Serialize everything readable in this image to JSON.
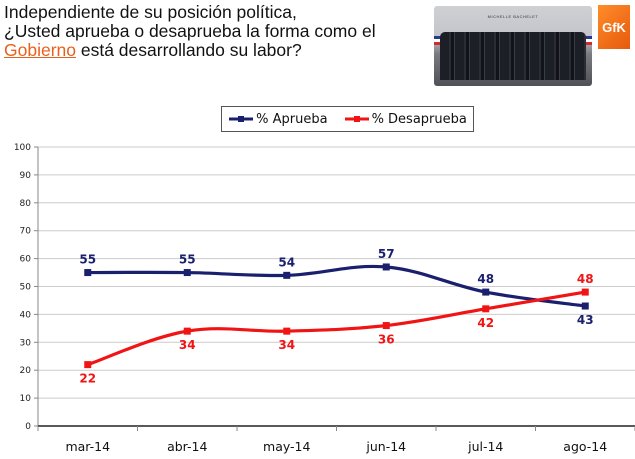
{
  "header": {
    "title_line1": "Independiente de su posición política,",
    "title_line2": "¿Usted aprueba o desaprueba la forma como el",
    "title_highlight": "Gobierno",
    "title_line3_rest": " está desarrollando su labor?",
    "photo_caption": "MICHELLE BACHELET",
    "logo_text": "GfK"
  },
  "colors": {
    "aprueba": "#1a1f6e",
    "desaprueba": "#f01414",
    "highlight": "#e8611c",
    "grid": "#cccccc"
  },
  "chart_data": {
    "type": "line",
    "title": "",
    "xlabel": "",
    "ylabel": "",
    "categories": [
      "mar-14",
      "abr-14",
      "may-14",
      "jun-14",
      "jul-14",
      "ago-14"
    ],
    "series": [
      {
        "name": "% Aprueba",
        "values": [
          55,
          55,
          54,
          57,
          48,
          43
        ],
        "color": "#1a1f6e",
        "label_pos": [
          "above",
          "above",
          "above",
          "above",
          "above",
          "below"
        ]
      },
      {
        "name": "% Desaprueba",
        "values": [
          22,
          34,
          34,
          36,
          42,
          48
        ],
        "color": "#f01414",
        "label_pos": [
          "below",
          "below",
          "below",
          "below",
          "below",
          "above"
        ]
      }
    ],
    "ylim": [
      0,
      100
    ],
    "yticks": [
      0,
      10,
      20,
      30,
      40,
      50,
      60,
      70,
      80,
      90,
      100
    ],
    "grid": true,
    "smooth": true,
    "legend": "top-center"
  }
}
